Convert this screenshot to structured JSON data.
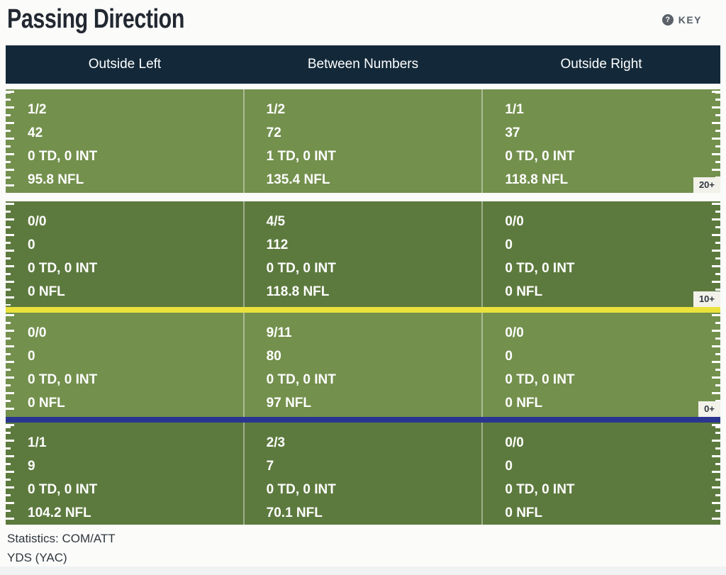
{
  "title": "Passing Direction",
  "key": {
    "label": "KEY",
    "icon_glyph": "?"
  },
  "columns": {
    "left": "Outside Left",
    "center": "Between Numbers",
    "right": "Outside Right"
  },
  "rows": [
    {
      "depth": "20+",
      "cells": [
        {
          "com_att": "1/2",
          "yds": "42",
          "td_int": "0 TD, 0 INT",
          "nfl_rating": "95.8 NFL"
        },
        {
          "com_att": "1/2",
          "yds": "72",
          "td_int": "1 TD, 0 INT",
          "nfl_rating": "135.4 NFL"
        },
        {
          "com_att": "1/1",
          "yds": "37",
          "td_int": "0 TD, 0 INT",
          "nfl_rating": "118.8 NFL"
        }
      ]
    },
    {
      "depth": "10+",
      "cells": [
        {
          "com_att": "0/0",
          "yds": "0",
          "td_int": "0 TD, 0 INT",
          "nfl_rating": "0 NFL"
        },
        {
          "com_att": "4/5",
          "yds": "112",
          "td_int": "0 TD, 0 INT",
          "nfl_rating": "118.8 NFL"
        },
        {
          "com_att": "0/0",
          "yds": "0",
          "td_int": "0 TD, 0 INT",
          "nfl_rating": "0 NFL"
        }
      ]
    },
    {
      "depth": "0+",
      "cells": [
        {
          "com_att": "0/0",
          "yds": "0",
          "td_int": "0 TD, 0 INT",
          "nfl_rating": "0 NFL"
        },
        {
          "com_att": "9/11",
          "yds": "80",
          "td_int": "0 TD, 0 INT",
          "nfl_rating": "97 NFL"
        },
        {
          "com_att": "0/0",
          "yds": "0",
          "td_int": "0 TD, 0 INT",
          "nfl_rating": "0 NFL"
        }
      ]
    },
    {
      "depth": "",
      "cells": [
        {
          "com_att": "1/1",
          "yds": "9",
          "td_int": "0 TD, 0 INT",
          "nfl_rating": "104.2 NFL"
        },
        {
          "com_att": "2/3",
          "yds": "7",
          "td_int": "0 TD, 0 INT",
          "nfl_rating": "70.1 NFL"
        },
        {
          "com_att": "0/0",
          "yds": "0",
          "td_int": "0 TD, 0 INT",
          "nfl_rating": "0 NFL"
        }
      ]
    }
  ],
  "footer": {
    "line1": "Statistics: COM/ATT",
    "line2": "YDS (YAC)"
  },
  "colors": {
    "field-light": "#73904d",
    "field-dark": "#5d7a3e",
    "header-navy": "#132939",
    "yellow-line": "#ebe33c",
    "blue-line": "#2a3590",
    "label-bg": "#f2f1ea",
    "label-text": "#2f3740",
    "title-text": "#222831",
    "key-text": "#565e66",
    "footer-text": "#2f363c",
    "cell-text": "#ffffff"
  }
}
